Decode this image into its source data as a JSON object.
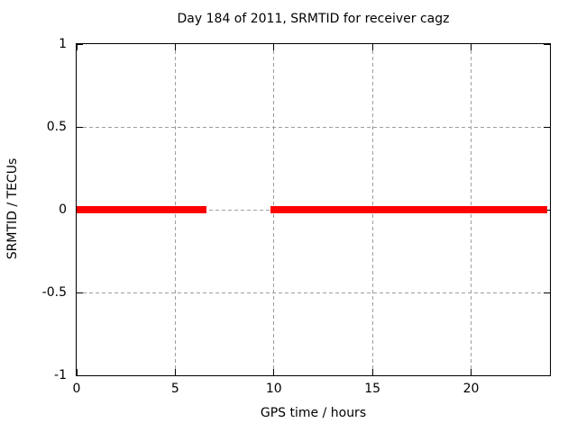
{
  "window": {
    "background": "#ffffff"
  },
  "chart_data": {
    "type": "line",
    "title": "Day 184 of 2011, SRMTID for receiver cagz",
    "xlabel": "GPS time / hours",
    "ylabel": "SRMTID / TECUs",
    "xlim": [
      0,
      24
    ],
    "ylim": [
      -1,
      1
    ],
    "xticks": [
      0,
      5,
      10,
      15,
      20
    ],
    "yticks": [
      1,
      0.5,
      0,
      -0.5,
      -1
    ],
    "grid": {
      "style": "dashed",
      "color": "#9e9e9e"
    },
    "axis_color": "#000000",
    "text_color": "#000000",
    "background": "#ffffff",
    "legend": "none",
    "series": [
      {
        "name": "SRMTID",
        "color": "#ff0000",
        "y_value": 0,
        "segments_x_hours": [
          [
            0,
            6.57
          ],
          [
            9.85,
            23.86
          ]
        ],
        "gaps_x_hours": [
          [
            6.57,
            9.85
          ]
        ]
      }
    ]
  }
}
